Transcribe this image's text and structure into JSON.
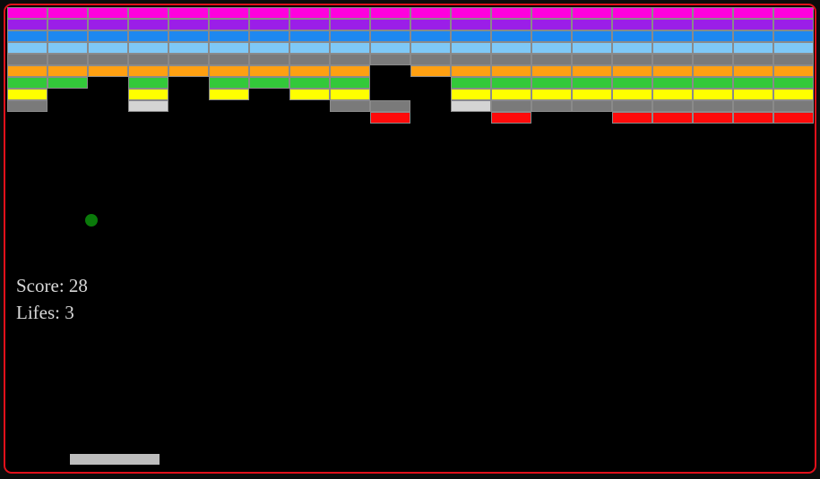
{
  "hud": {
    "score_label": "Score: 28",
    "lives_label": "Lifes: 3"
  },
  "colors": {
    "frame": "#e0101a",
    "ball": "#0a7a0a",
    "paddle": "#bdbdbd",
    "brick_border": "#8a8a8a",
    "text": "#d8d8d8"
  },
  "bricks": {
    "columns": 20,
    "palette": {
      "M": "#ff00dd",
      "P": "#9b1ee8",
      "B": "#1e88f0",
      "L": "#7ec8f6",
      "G": "#7a7a7a",
      "O": "#ffa012",
      "N": "#33c93a",
      "Y": "#ffff00",
      "W": "#d4d4d4",
      "R": "#ff0a0a"
    },
    "rows": [
      "MMMMMMMMMMMMMMMMMMMM",
      "PPPPPPPPPPPPPPPPPPPP",
      "BBBBBBBBBBBBBBBBBBBB",
      "LLLLLLLLLLLLLLLLLLLL",
      "GGGGGGGGGGGGGGGGGGGG",
      "OOOOOOOOO.OOOOOOOOOO",
      "NN.N.NNNN..NNNNNNNNN",
      "Y..Y.Y.YY..YYYYYYYYY",
      "G..W....GG.WGGGGGGGG",
      ".........R..R..RRRRR"
    ]
  }
}
